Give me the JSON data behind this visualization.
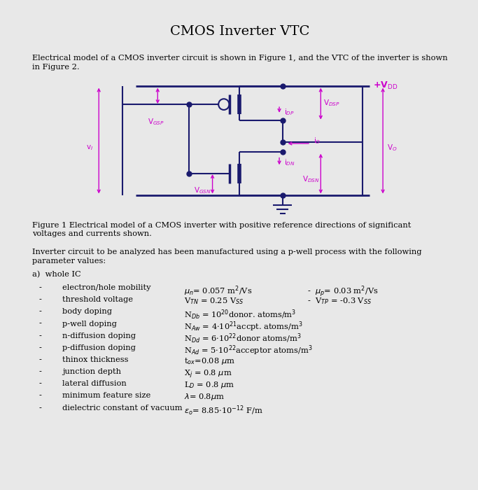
{
  "title": "CMOS Inverter VTC",
  "bg_color": "#e8e8e8",
  "page_color": "#ffffff",
  "intro_text1": "Electrical model of a CMOS inverter circuit is shown in Figure 1, and the VTC of the inverter is shown",
  "intro_text2": "in Figure 2.",
  "fig_caption1": "Figure 1 Electrical model of a CMOS inverter with positive reference directions of significant",
  "fig_caption2": "voltages and currents shown.",
  "inverter_text1": "Inverter circuit to be analyzed has been manufactured using a p-well process with the following",
  "inverter_text2": "parameter values:",
  "circuit_color": "#1a1a6e",
  "label_color": "#cc00cc",
  "vdd_color": "#1a1a6e",
  "title_fontsize": 14,
  "body_fontsize": 8.2,
  "label_fontsize": 7.5
}
